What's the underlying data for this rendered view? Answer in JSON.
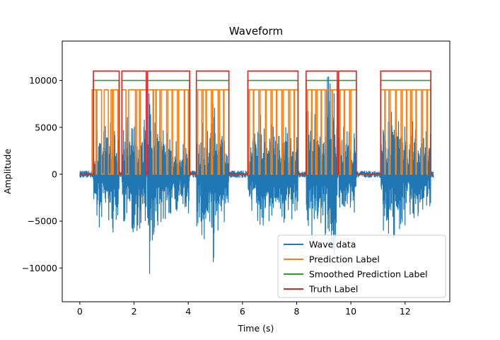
{
  "chart_data": {
    "type": "line",
    "title": "Waveform",
    "xlabel": "Time (s)",
    "ylabel": "Amplitude",
    "xlim": [
      -0.65,
      13.65
    ],
    "ylim": [
      -13600,
      14200
    ],
    "xticks": [
      0,
      2,
      4,
      6,
      8,
      10,
      12
    ],
    "xtick_labels": [
      "0",
      "2",
      "4",
      "6",
      "8",
      "10",
      "12"
    ],
    "yticks": [
      -10000,
      -5000,
      0,
      5000,
      10000
    ],
    "ytick_labels": [
      "−10000",
      "−5000",
      "0",
      "5000",
      "10000"
    ],
    "grid": false,
    "legend_position": "lower-right",
    "active_segments": [
      [
        0.5,
        1.45
      ],
      [
        1.55,
        2.45
      ],
      [
        2.5,
        4.05
      ],
      [
        4.3,
        5.5
      ],
      [
        6.2,
        8.05
      ],
      [
        8.35,
        9.5
      ],
      [
        9.55,
        10.2
      ],
      [
        11.1,
        12.95
      ]
    ],
    "series": [
      {
        "name": "Wave data",
        "color": "#1f77b4",
        "kind": "waveform",
        "x_range": [
          0.0,
          13.05
        ],
        "envelope": {
          "x": [
            0.5,
            0.7,
            0.9,
            1.0,
            1.2,
            1.4,
            1.6,
            1.75,
            2.0,
            2.2,
            2.4,
            2.55,
            2.65,
            2.8,
            3.0,
            3.3,
            3.6,
            3.9,
            4.35,
            4.5,
            4.7,
            4.95,
            5.1,
            5.3,
            6.25,
            6.5,
            6.7,
            7.0,
            7.3,
            7.6,
            7.9,
            8.4,
            8.6,
            8.8,
            9.0,
            9.15,
            9.3,
            9.55,
            9.75,
            10.0,
            11.1,
            11.25,
            11.4,
            11.6,
            11.8,
            12.0,
            12.2,
            12.5,
            12.8
          ],
          "pos": [
            3200,
            5500,
            4500,
            6300,
            5300,
            3800,
            5000,
            6700,
            5200,
            4200,
            6300,
            13000,
            6700,
            8600,
            5500,
            4200,
            3700,
            3000,
            5300,
            5700,
            4500,
            9300,
            5200,
            3800,
            3500,
            7200,
            6200,
            5500,
            6100,
            5300,
            4000,
            6700,
            7800,
            7500,
            5200,
            12000,
            11600,
            6000,
            5500,
            4500,
            5000,
            8000,
            8000,
            7000,
            6500,
            5700,
            6000,
            5200,
            4500
          ],
          "neg": [
            -2500,
            -5800,
            -5200,
            -4500,
            -7300,
            -5000,
            -5000,
            -6300,
            -6500,
            -6200,
            -4500,
            -12500,
            -8500,
            -5800,
            -5500,
            -4800,
            -4200,
            -3500,
            -6200,
            -7500,
            -6500,
            -9700,
            -7000,
            -5200,
            -3500,
            -6200,
            -5500,
            -5500,
            -5000,
            -6000,
            -4500,
            -5500,
            -7400,
            -6700,
            -5000,
            -9300,
            -9500,
            -7500,
            -5000,
            -4300,
            -5000,
            -7700,
            -7500,
            -6800,
            -6000,
            -5500,
            -4800,
            -4500,
            -3500
          ]
        }
      },
      {
        "name": "Prediction Label",
        "color": "#ff7f0e",
        "kind": "step",
        "high": 9000,
        "low": 0,
        "segments": [
          [
            0.45,
            0.8
          ],
          [
            0.9,
            1.05
          ],
          [
            1.15,
            1.4
          ],
          [
            1.55,
            1.7
          ],
          [
            1.8,
            2.05
          ],
          [
            2.1,
            2.45
          ],
          [
            2.5,
            2.95
          ],
          [
            3.0,
            3.2
          ],
          [
            3.25,
            3.6
          ],
          [
            3.65,
            4.0
          ],
          [
            4.35,
            4.5
          ],
          [
            4.55,
            4.85
          ],
          [
            4.9,
            5.1
          ],
          [
            5.15,
            5.5
          ],
          [
            6.25,
            6.6
          ],
          [
            6.65,
            7.05
          ],
          [
            7.1,
            7.45
          ],
          [
            7.5,
            7.7
          ],
          [
            7.75,
            8.05
          ],
          [
            8.4,
            8.7
          ],
          [
            8.75,
            9.05
          ],
          [
            9.1,
            9.5
          ],
          [
            9.6,
            9.95
          ],
          [
            10.0,
            10.2
          ],
          [
            11.1,
            11.4
          ],
          [
            11.45,
            11.85
          ],
          [
            11.9,
            12.2
          ],
          [
            12.25,
            12.6
          ],
          [
            12.65,
            12.95
          ]
        ],
        "gaps": [
          [
            0.6,
            0.63
          ],
          [
            1.2,
            1.23
          ],
          [
            2.2,
            2.23
          ],
          [
            2.7,
            2.72
          ],
          [
            2.8,
            2.82
          ],
          [
            3.4,
            3.42
          ],
          [
            3.85,
            3.87
          ],
          [
            4.65,
            4.67
          ],
          [
            5.3,
            5.32
          ],
          [
            6.4,
            6.42
          ],
          [
            6.85,
            6.87
          ],
          [
            7.25,
            7.27
          ],
          [
            7.9,
            7.92
          ],
          [
            8.55,
            8.57
          ],
          [
            8.9,
            8.92
          ],
          [
            9.3,
            9.32
          ],
          [
            9.75,
            9.77
          ],
          [
            11.25,
            11.27
          ],
          [
            11.65,
            11.67
          ],
          [
            12.05,
            12.07
          ],
          [
            12.4,
            12.42
          ],
          [
            12.8,
            12.82
          ]
        ]
      },
      {
        "name": "Smoothed Prediction Label",
        "color": "#2ca02c",
        "kind": "step",
        "high": 10000,
        "low": 0,
        "segments": [
          [
            0.5,
            1.45
          ],
          [
            1.55,
            2.45
          ],
          [
            2.5,
            4.05
          ],
          [
            4.3,
            5.5
          ],
          [
            6.2,
            8.05
          ],
          [
            8.35,
            9.5
          ],
          [
            9.55,
            10.2
          ],
          [
            11.1,
            12.95
          ]
        ]
      },
      {
        "name": "Truth Label",
        "color": "#d62728",
        "kind": "step",
        "high": 11000,
        "low": 0,
        "segments": [
          [
            0.5,
            1.45
          ],
          [
            1.55,
            2.45
          ],
          [
            2.5,
            4.05
          ],
          [
            4.3,
            5.5
          ],
          [
            6.2,
            8.05
          ],
          [
            8.35,
            9.5
          ],
          [
            9.55,
            10.2
          ],
          [
            11.1,
            12.95
          ]
        ]
      }
    ]
  }
}
